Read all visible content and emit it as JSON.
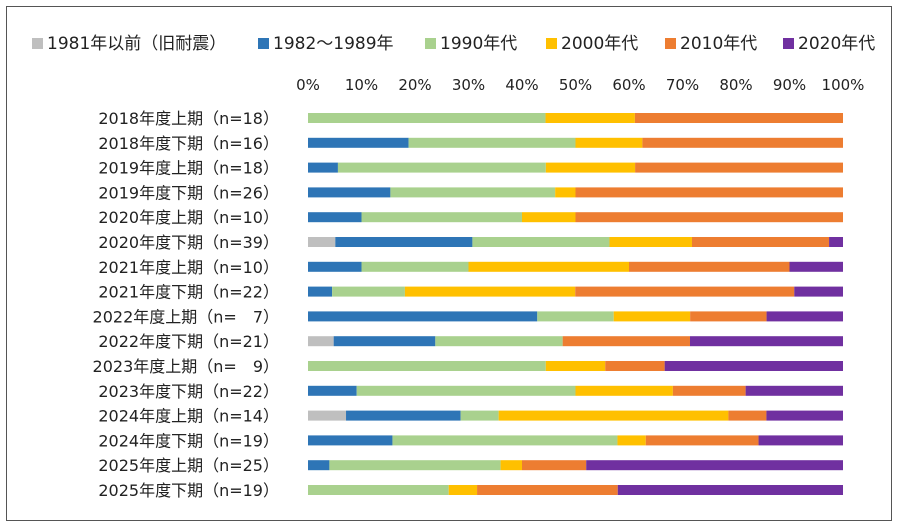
{
  "chart_data": {
    "type": "bar",
    "orientation": "horizontal",
    "stacked": "percent",
    "title": "",
    "xlabel": "",
    "ylabel": "",
    "xlim": [
      0,
      100
    ],
    "x_tick_labels": [
      "0%",
      "10%",
      "20%",
      "30%",
      "40%",
      "50%",
      "60%",
      "70%",
      "80%",
      "90%",
      "100%"
    ],
    "legend_position": "top",
    "grid": false,
    "categories": [
      "2018年度上期（n=18）",
      "2018年度下期（n=16）",
      "2019年度上期（n=18）",
      "2019年度下期（n=26）",
      "2020年度上期（n=10）",
      "2020年度下期（n=39）",
      "2021年度上期（n=10）",
      "2021年度下期（n=22）",
      "2022年度上期（n=　7）",
      "2022年度下期（n=21）",
      "2023年度上期（n=　9）",
      "2023年度下期（n=22）",
      "2024年度上期（n=14）",
      "2024年度下期（n=19）",
      "2025年度上期（n=25）",
      "2025年度下期（n=19）"
    ],
    "series": [
      {
        "name": "1981年以前（旧耐震）",
        "color": "#bfbfbf",
        "values": [
          0,
          0,
          0,
          0,
          0,
          5.1,
          0,
          0,
          0,
          4.8,
          0,
          0,
          7.1,
          0,
          0,
          0
        ]
      },
      {
        "name": "1982～1989年",
        "color": "#2e75b6",
        "values": [
          0,
          18.8,
          5.6,
          15.4,
          10.0,
          25.6,
          10.0,
          4.5,
          42.9,
          19.0,
          0,
          9.1,
          21.4,
          15.8,
          4.0,
          0
        ]
      },
      {
        "name": "1990年代",
        "color": "#a9d18e",
        "values": [
          44.4,
          31.2,
          38.9,
          30.8,
          30.0,
          25.6,
          20.0,
          13.6,
          14.3,
          23.8,
          44.4,
          40.9,
          7.1,
          42.1,
          32.0,
          26.3
        ]
      },
      {
        "name": "2000年代",
        "color": "#ffc000",
        "values": [
          16.7,
          12.5,
          16.7,
          3.8,
          10.0,
          15.4,
          30.0,
          31.8,
          14.3,
          0,
          11.1,
          18.2,
          42.9,
          5.3,
          4.0,
          5.3
        ]
      },
      {
        "name": "2010年代",
        "color": "#ed7d31",
        "values": [
          38.9,
          37.5,
          38.9,
          50.0,
          50.0,
          25.6,
          30.0,
          40.9,
          14.3,
          23.8,
          11.1,
          13.6,
          7.1,
          21.1,
          12.0,
          26.3
        ]
      },
      {
        "name": "2020年代",
        "color": "#7030a0",
        "values": [
          0,
          0,
          0,
          0,
          0,
          2.6,
          10.0,
          9.1,
          14.3,
          28.6,
          33.3,
          18.2,
          14.3,
          15.8,
          48.0,
          42.1
        ]
      }
    ]
  }
}
